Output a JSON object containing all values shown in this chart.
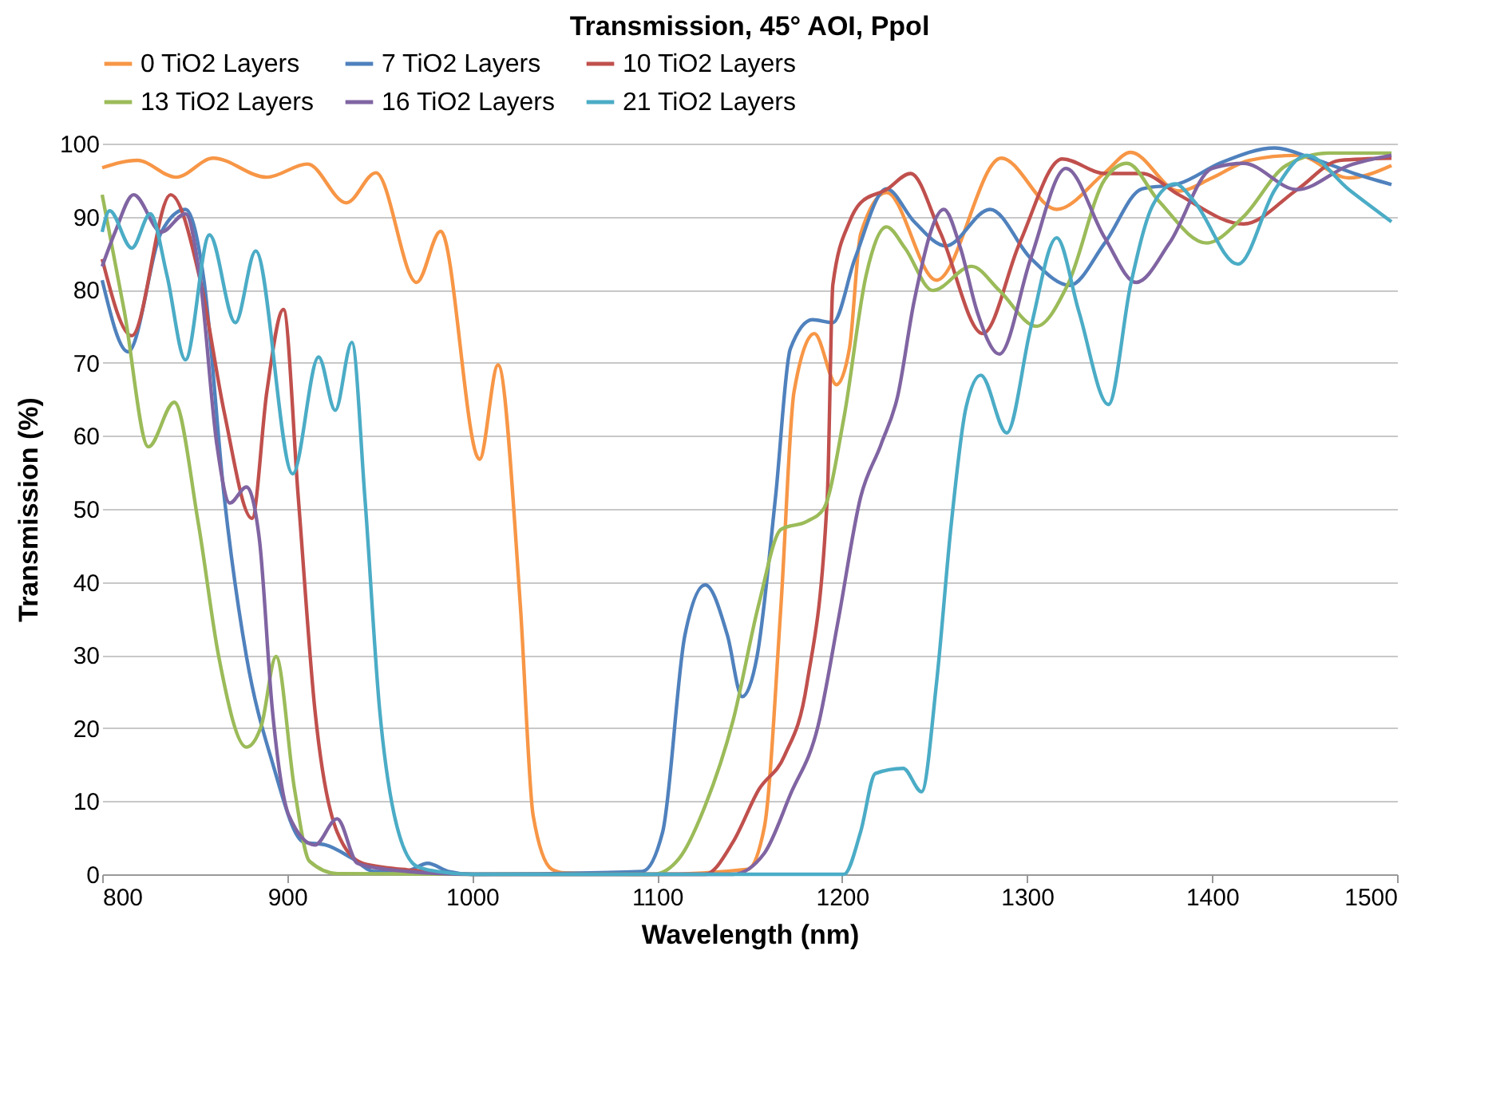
{
  "chart_data": {
    "type": "line",
    "title": "Transmission, 45° AOI, Ppol",
    "xlabel": "Wavelength (nm)",
    "ylabel": "Transmission (%)",
    "xlim": [
      800,
      1500
    ],
    "xticks": [
      800,
      900,
      1000,
      1100,
      1200,
      1300,
      1400,
      1500
    ],
    "ylim": [
      0,
      100
    ],
    "yticks": [
      0,
      10,
      20,
      30,
      40,
      50,
      60,
      70,
      80,
      90,
      100
    ],
    "grid": "y",
    "legend": "top",
    "line_style": "solid",
    "marker": "none",
    "series": [
      {
        "name": "0 TiO2 Layers",
        "color": "#f79646",
        "x": [
          800,
          819,
          840,
          860,
          889,
          911,
          932,
          948,
          970,
          983,
          1004,
          1014,
          1026,
          1033,
          1043,
          1050,
          1100,
          1149,
          1158,
          1167,
          1174,
          1185,
          1197,
          1204,
          1210,
          1224,
          1251,
          1286,
          1316,
          1342,
          1356,
          1382,
          1400,
          1420,
          1446,
          1474,
          1497
        ],
        "values": [
          96.7,
          97.7,
          95.4,
          98,
          95.4,
          97.2,
          91.9,
          96,
          81,
          88,
          56.8,
          69.7,
          37,
          8,
          0.7,
          0.2,
          0,
          0.7,
          6.5,
          37,
          66,
          74,
          67,
          72,
          87.6,
          93.3,
          81.3,
          98,
          91,
          96,
          98.8,
          93.5,
          95.3,
          97.7,
          98.4,
          95.3,
          97
        ]
      },
      {
        "name": "7 TiO2 Layers",
        "color": "#4f81bd",
        "x": [
          800,
          814,
          832,
          845,
          855,
          866,
          878,
          892,
          909,
          921,
          935,
          947,
          964,
          976,
          987,
          1000,
          1092,
          1103,
          1115,
          1126,
          1138,
          1146,
          1154,
          1164,
          1172,
          1184,
          1195,
          1207,
          1224,
          1239,
          1256,
          1280,
          1302,
          1323,
          1342,
          1362,
          1382,
          1405,
          1434,
          1454,
          1477,
          1497
        ],
        "values": [
          81.3,
          71.5,
          87.9,
          91,
          81.3,
          51.6,
          29.8,
          15.3,
          4.4,
          4,
          2.2,
          0.4,
          0.4,
          1.5,
          0.4,
          0,
          0.4,
          5.8,
          32.7,
          39.6,
          32.7,
          24.3,
          29.8,
          51.6,
          71.9,
          75.9,
          75.5,
          84.3,
          93.8,
          89.3,
          86,
          91,
          84.3,
          80.6,
          86.4,
          93.8,
          94.5,
          97.4,
          99.4,
          98,
          95.9,
          94.4
        ]
      },
      {
        "name": "10 TiO2 Layers",
        "color": "#c0504d",
        "x": [
          800,
          816,
          837,
          853,
          866,
          881,
          889,
          898,
          906,
          915,
          927,
          941,
          970,
          1000,
          1126,
          1141,
          1155,
          1169,
          1181,
          1192,
          1195,
          1204,
          1210,
          1224,
          1237,
          1253,
          1276,
          1296,
          1319,
          1342,
          1362,
          1382,
          1417,
          1446,
          1469,
          1497
        ],
        "values": [
          84.2,
          73.7,
          93,
          81.3,
          63.2,
          48.7,
          66,
          77.3,
          51.6,
          22.5,
          5.8,
          1.5,
          0.5,
          0,
          0,
          4.4,
          11.6,
          16.3,
          26.1,
          51.6,
          80.7,
          89.3,
          91.9,
          93.7,
          95.9,
          87.9,
          74,
          86.4,
          97.9,
          95.9,
          95.9,
          93,
          89,
          93.7,
          97.7,
          98
        ]
      },
      {
        "name": "13 TiO2 Layers",
        "color": "#9bbb59",
        "x": [
          800,
          812,
          825,
          839,
          852,
          863,
          878,
          886,
          894,
          904,
          912,
          927,
          1000,
          1098,
          1112,
          1126,
          1141,
          1155,
          1167,
          1181,
          1190,
          1201,
          1213,
          1224,
          1234,
          1249,
          1270,
          1285,
          1305,
          1322,
          1342,
          1354,
          1371,
          1397,
          1417,
          1440,
          1463,
          1497
        ],
        "values": [
          93,
          77,
          58.5,
          64.6,
          48,
          29.8,
          17.4,
          20.3,
          29.8,
          11.6,
          1.8,
          0.1,
          0,
          0,
          2.2,
          9.4,
          21,
          37,
          47.2,
          48.3,
          50,
          62.5,
          82,
          88.6,
          85.7,
          79.9,
          83.2,
          79.9,
          75,
          80.7,
          95.1,
          97.3,
          92.2,
          86.4,
          90,
          97,
          98.7,
          98.7
        ]
      },
      {
        "name": "16 TiO2 Layers",
        "color": "#8064a2",
        "x": [
          800,
          807,
          817,
          832,
          845,
          853,
          862,
          869,
          878,
          885,
          892,
          901,
          915,
          927,
          938,
          953,
          1000,
          1141,
          1158,
          1172,
          1187,
          1198,
          1210,
          1221,
          1230,
          1239,
          1255,
          1264,
          1273,
          1285,
          1302,
          1321,
          1342,
          1359,
          1377,
          1400,
          1417,
          1446,
          1474,
          1497
        ],
        "values": [
          83.2,
          87.9,
          93,
          87.9,
          90.4,
          81.3,
          58.8,
          50.8,
          53,
          45.8,
          22.5,
          8,
          4,
          7.6,
          1.5,
          0.7,
          0,
          0,
          2.9,
          10.9,
          20.3,
          34.9,
          51.6,
          58.8,
          65.4,
          78.5,
          91,
          85.7,
          77,
          71.2,
          84.3,
          96.6,
          87.1,
          81,
          86.4,
          96.6,
          97.3,
          93.7,
          97,
          98.4
        ]
      },
      {
        "name": "21 TiO2 Layers",
        "color": "#4bacc6",
        "x": [
          800,
          804,
          816,
          826,
          835,
          845,
          858,
          872,
          883,
          903,
          917,
          926,
          935,
          942,
          950,
          958,
          970,
          981,
          1000,
          1201,
          1210,
          1218,
          1233,
          1243,
          1251,
          1259,
          1267,
          1275,
          1289,
          1302,
          1316,
          1328,
          1344,
          1356,
          1368,
          1380,
          1390,
          1414,
          1434,
          1451,
          1474,
          1497
        ],
        "values": [
          87.9,
          90.8,
          85.7,
          90.4,
          82,
          70.4,
          87.5,
          75.5,
          85.3,
          54.8,
          70.8,
          63.5,
          72.8,
          51.6,
          22.5,
          8,
          1.1,
          0.4,
          0,
          0,
          5.8,
          13.8,
          14.5,
          11.3,
          26.1,
          47.9,
          63.9,
          68.3,
          60.4,
          74.8,
          87.1,
          77,
          64.3,
          80.7,
          91.6,
          94.5,
          92.2,
          83.5,
          93.7,
          98.4,
          93.7,
          89.3
        ]
      }
    ]
  }
}
